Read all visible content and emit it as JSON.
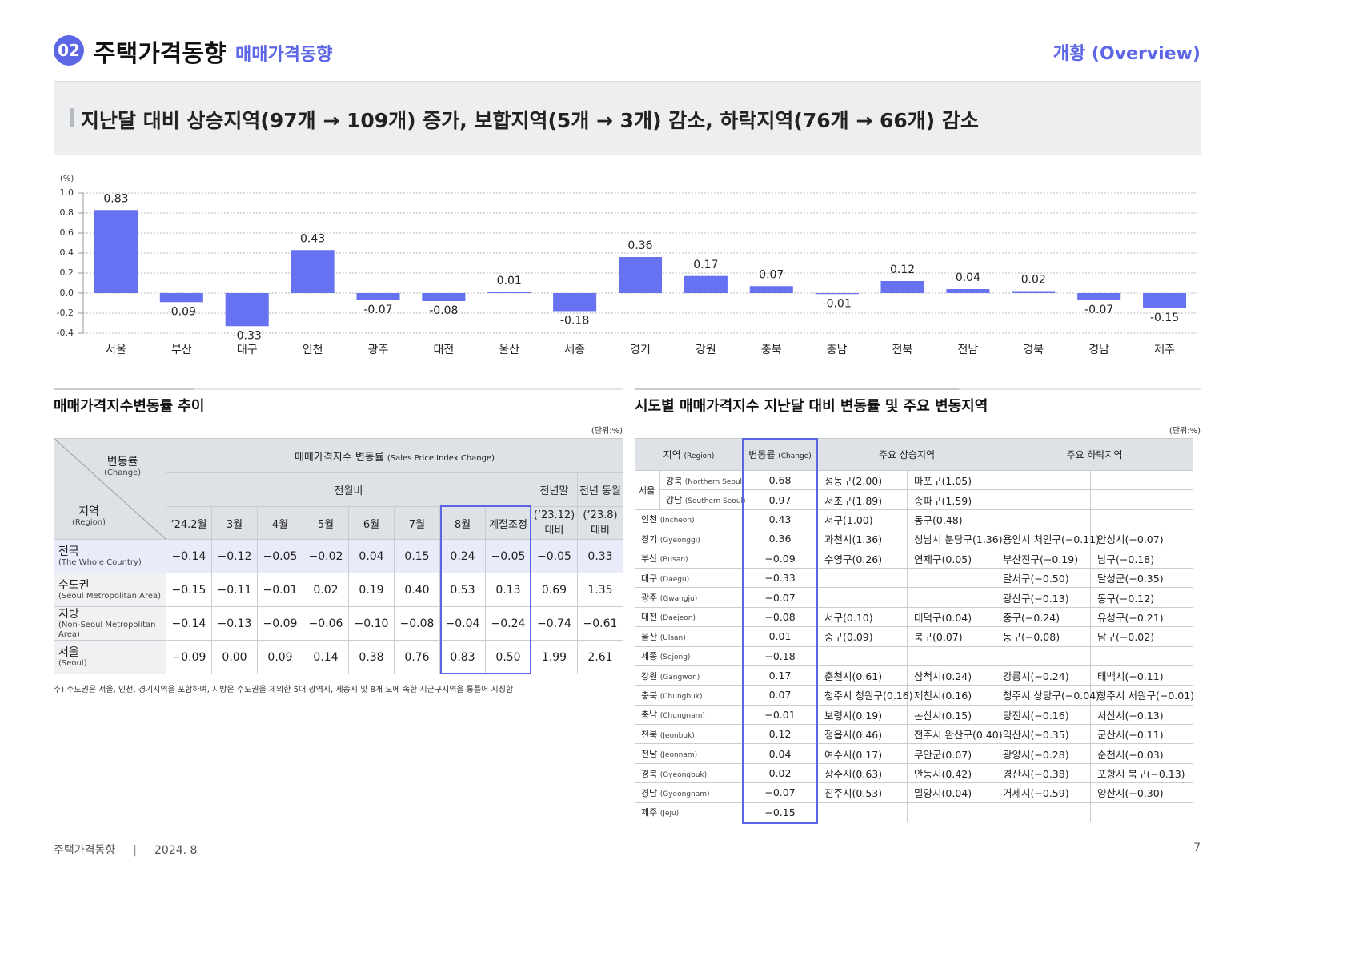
{
  "header": {
    "number": "02",
    "title": "주택가격동향",
    "subtitle": "매매가격동향",
    "right": "개황 (Overview)"
  },
  "headline": "지난달 대비 상승지역(97개 → 109개) 증가, 보합지역(5개 → 3개) 감소, 하락지역(76개 → 66개) 감소",
  "chart_data": {
    "type": "bar",
    "y_label": "(%)",
    "categories": [
      "서울",
      "부산",
      "대구",
      "인천",
      "광주",
      "대전",
      "울산",
      "세종",
      "경기",
      "강원",
      "충북",
      "충남",
      "전북",
      "전남",
      "경북",
      "경남",
      "제주"
    ],
    "values": [
      0.83,
      -0.09,
      -0.33,
      0.43,
      -0.07,
      -0.08,
      0.01,
      -0.18,
      0.36,
      0.17,
      0.07,
      -0.01,
      0.12,
      0.04,
      0.02,
      -0.07,
      -0.15
    ],
    "color": "#6672f2",
    "ylim": [
      -0.4,
      1.0
    ],
    "yticks": [
      {
        "value": 1,
        "label": "1.0"
      },
      0.8,
      0.6,
      0.4,
      0.2,
      {
        "value": 0,
        "label": "0.0"
      },
      -0.2,
      -0.4
    ],
    "grid": true
  },
  "left_table": {
    "title": "매매가격지수변동률 추이",
    "unit": "(단위:%)",
    "corner": {
      "top": "변동률",
      "top_en": "(Change)",
      "bottom": "지역",
      "bottom_en": "(Region)"
    },
    "group": "매매가격지수 변동률",
    "group_en": "(Sales Price Index Change)",
    "mom": "전월비",
    "months": [
      "’24.2월",
      "3월",
      "4월",
      "5월",
      "6월",
      "7월",
      "8월",
      "계절조정"
    ],
    "ytd_top": "전년말",
    "ytd_bottom": "(’23.12) 대비",
    "yoy_top": "전년 동월",
    "yoy_bottom": "(’23.8) 대비",
    "rows": [
      {
        "name": "전국",
        "name_en": "(The Whole Country)",
        "values": [
          "−0.14",
          "−0.12",
          "−0.05",
          "−0.02",
          "0.04",
          "0.15",
          "0.24",
          "−0.05",
          "−0.05",
          "0.33"
        ]
      },
      {
        "name": "수도권",
        "name_en": "(Seoul Metropolitan Area)",
        "values": [
          "−0.15",
          "−0.11",
          "−0.01",
          "0.02",
          "0.19",
          "0.40",
          "0.53",
          "0.13",
          "0.69",
          "1.35"
        ]
      },
      {
        "name": "지방",
        "name_en": "(Non-Seoul Metropolitan Area)",
        "values": [
          "−0.14",
          "−0.13",
          "−0.09",
          "−0.06",
          "−0.10",
          "−0.08",
          "−0.04",
          "−0.24",
          "−0.74",
          "−0.61"
        ]
      },
      {
        "name": "서울",
        "name_en": "(Seoul)",
        "values": [
          "−0.09",
          "0.00",
          "0.09",
          "0.14",
          "0.38",
          "0.76",
          "0.83",
          "0.50",
          "1.99",
          "2.61"
        ]
      }
    ],
    "note": "주) 수도권은 서울, 인천, 경기지역을 포함하며, 지방은 수도권을 제외한 5대 광역시, 세종시 및 8개 도에 속한 시군구지역을 통틀어 지칭함"
  },
  "right_table": {
    "title": "시도별 매매가격지수 지난달 대비 변동률 및 주요 변동지역",
    "unit": "(단위:%)",
    "header": {
      "region": "지역",
      "region_en": "(Region)",
      "change": "변동률",
      "change_en": "(Change)",
      "rise": "주요 상승지역",
      "fall": "주요 하락지역"
    },
    "seoul": {
      "label": "서울",
      "rows": [
        {
          "region": "강북",
          "region_en": "(Northern Seoul)",
          "change": "0.68",
          "rise": [
            "성동구(2.00)",
            "마포구(1.05)"
          ],
          "fall": []
        },
        {
          "region": "강남",
          "region_en": "(Southern Seoul)",
          "change": "0.97",
          "rise": [
            "서초구(1.89)",
            "송파구(1.59)"
          ],
          "fall": []
        }
      ]
    },
    "rows": [
      {
        "region": "인천",
        "region_en": "(Incheon)",
        "change": "0.43",
        "rise": [
          "서구(1.00)",
          "동구(0.48)"
        ],
        "fall": []
      },
      {
        "region": "경기",
        "region_en": "(Gyeonggi)",
        "change": "0.36",
        "rise": [
          "과천시(1.36)",
          "성남시 분당구(1.36)"
        ],
        "fall": [
          "용인시 처인구(−0.11)",
          "안성시(−0.07)"
        ]
      },
      {
        "region": "부산",
        "region_en": "(Busan)",
        "change": "−0.09",
        "rise": [
          "수영구(0.26)",
          "연제구(0.05)"
        ],
        "fall": [
          "부산진구(−0.19)",
          "남구(−0.18)"
        ]
      },
      {
        "region": "대구",
        "region_en": "(Daegu)",
        "change": "−0.33",
        "rise": [],
        "fall": [
          "달서구(−0.50)",
          "달성군(−0.35)"
        ]
      },
      {
        "region": "광주",
        "region_en": "(Gwangju)",
        "change": "−0.07",
        "rise": [],
        "fall": [
          "광산구(−0.13)",
          "동구(−0.12)"
        ]
      },
      {
        "region": "대전",
        "region_en": "(Daejeon)",
        "change": "−0.08",
        "rise": [
          "서구(0.10)",
          "대덕구(0.04)"
        ],
        "fall": [
          "중구(−0.24)",
          "유성구(−0.21)"
        ]
      },
      {
        "region": "울산",
        "region_en": "(Ulsan)",
        "change": "0.01",
        "rise": [
          "중구(0.09)",
          "북구(0.07)"
        ],
        "fall": [
          "동구(−0.08)",
          "남구(−0.02)"
        ]
      },
      {
        "region": "세종",
        "region_en": "(Sejong)",
        "change": "−0.18",
        "rise": [],
        "fall": []
      },
      {
        "region": "강원",
        "region_en": "(Gangwon)",
        "change": "0.17",
        "rise": [
          "춘천시(0.61)",
          "삼척시(0.24)"
        ],
        "fall": [
          "강릉시(−0.24)",
          "태백시(−0.11)"
        ]
      },
      {
        "region": "충북",
        "region_en": "(Chungbuk)",
        "change": "0.07",
        "rise": [
          "청주시 청원구(0.16)",
          "제천시(0.16)"
        ],
        "fall": [
          "청주시 상당구(−0.04)",
          "청주시 서원구(−0.01)"
        ]
      },
      {
        "region": "충남",
        "region_en": "(Chungnam)",
        "change": "−0.01",
        "rise": [
          "보령시(0.19)",
          "논산시(0.15)"
        ],
        "fall": [
          "당진시(−0.16)",
          "서산시(−0.13)"
        ]
      },
      {
        "region": "전북",
        "region_en": "(Jeonbuk)",
        "change": "0.12",
        "rise": [
          "정읍시(0.46)",
          "전주시 완산구(0.40)"
        ],
        "fall": [
          "익산시(−0.35)",
          "군산시(−0.11)"
        ]
      },
      {
        "region": "전남",
        "region_en": "(Jeonnam)",
        "change": "0.04",
        "rise": [
          "여수시(0.17)",
          "무안군(0.07)"
        ],
        "fall": [
          "광양시(−0.28)",
          "순천시(−0.03)"
        ]
      },
      {
        "region": "경북",
        "region_en": "(Gyeongbuk)",
        "change": "0.02",
        "rise": [
          "상주시(0.63)",
          "안동시(0.42)"
        ],
        "fall": [
          "경산시(−0.38)",
          "포항시 북구(−0.13)"
        ]
      },
      {
        "region": "경남",
        "region_en": "(Gyeongnam)",
        "change": "−0.07",
        "rise": [
          "진주시(0.53)",
          "밀양시(0.04)"
        ],
        "fall": [
          "거제시(−0.59)",
          "양산시(−0.30)"
        ]
      },
      {
        "region": "제주",
        "region_en": "(Jeju)",
        "change": "−0.15",
        "rise": [],
        "fall": []
      }
    ]
  },
  "footer": {
    "title": "주택가격동향",
    "date": "2024. 8",
    "page": "7"
  }
}
